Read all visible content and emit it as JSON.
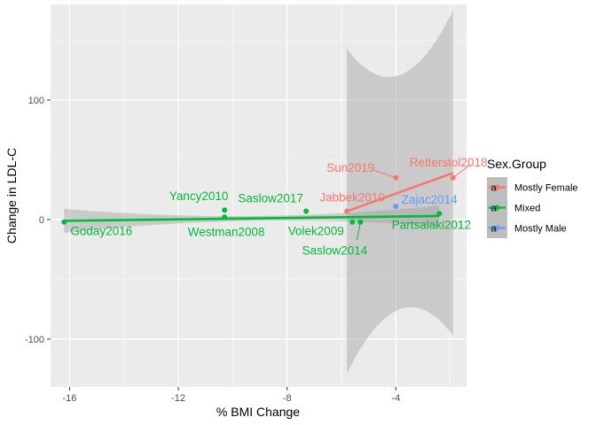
{
  "chart_data": {
    "type": "scatter",
    "xlabel": "% BMI Change",
    "ylabel": "Change in LDL-C",
    "xlim": [
      -16.7,
      -1.4
    ],
    "ylim": [
      -140,
      180
    ],
    "x_ticks": [
      -16,
      -12,
      -8,
      -4
    ],
    "y_ticks": [
      -100,
      0,
      100
    ],
    "x_tick_labels": [
      "-16",
      "-12",
      "-8",
      "-4"
    ],
    "y_tick_labels": [
      "-100",
      "0",
      "100"
    ],
    "grid": true,
    "legend": {
      "title": "Sex.Group",
      "placement": "right",
      "entries": [
        "Mostly Female",
        "Mixed",
        "Mostly Male"
      ]
    },
    "colors": {
      "Mostly Female": "#F8766D",
      "Mixed": "#00BA38",
      "Mostly Male": "#619CFF",
      "panel": "#EBEBEB",
      "band": "#999999"
    },
    "series": [
      {
        "name": "Mostly Female",
        "points": [
          {
            "label": "Retterstol2018",
            "x": -1.9,
            "y": 35
          },
          {
            "label": "Sun2019",
            "x": -4.0,
            "y": 35
          },
          {
            "label": "Jabbek2010",
            "x": -5.8,
            "y": 7
          }
        ],
        "fit": {
          "x": [
            -5.8,
            -1.9
          ],
          "y": [
            7,
            39
          ]
        }
      },
      {
        "name": "Mixed",
        "points": [
          {
            "label": "Goday2016",
            "x": -16.2,
            "y": -2
          },
          {
            "label": "Yancy2010",
            "x": -10.3,
            "y": 8
          },
          {
            "label": "Westman2008",
            "x": -10.3,
            "y": 2
          },
          {
            "label": "Saslow2017",
            "x": -7.3,
            "y": 7
          },
          {
            "label": "Volek2009",
            "x": -5.6,
            "y": -2
          },
          {
            "label": "Saslow2014",
            "x": -5.3,
            "y": -2
          },
          {
            "label": "Partsalaki2012",
            "x": -2.4,
            "y": 5
          }
        ],
        "fit": {
          "x": [
            -16.2,
            -2.4
          ],
          "y": [
            -1,
            3
          ]
        }
      },
      {
        "name": "Mostly Male",
        "points": [
          {
            "label": "Zajac2014",
            "x": -4.0,
            "y": 11
          }
        ],
        "fit": null
      }
    ]
  }
}
